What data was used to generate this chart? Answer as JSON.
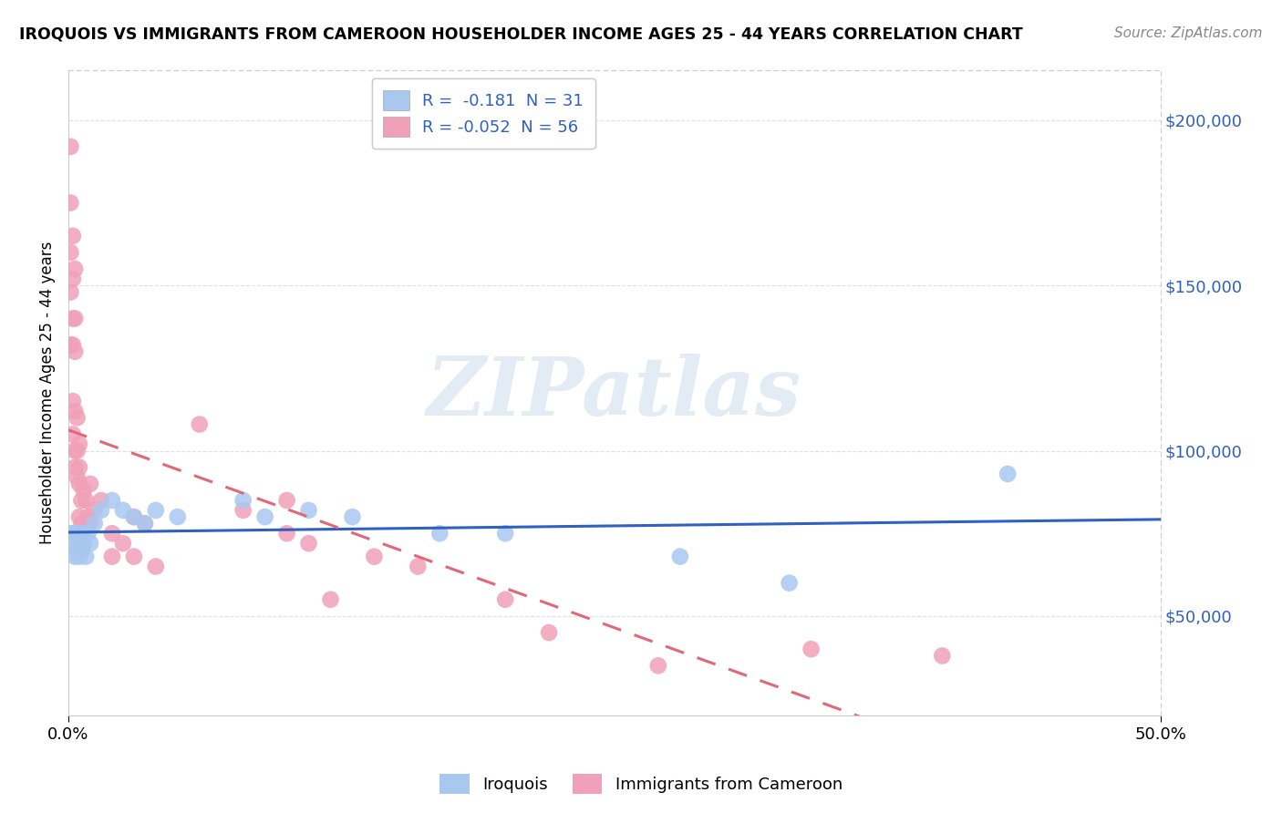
{
  "title": "IROQUOIS VS IMMIGRANTS FROM CAMEROON HOUSEHOLDER INCOME AGES 25 - 44 YEARS CORRELATION CHART",
  "source": "Source: ZipAtlas.com",
  "ylabel": "Householder Income Ages 25 - 44 years",
  "yticks": [
    50000,
    100000,
    150000,
    200000
  ],
  "ytick_labels": [
    "$50,000",
    "$100,000",
    "$150,000",
    "$200,000"
  ],
  "xtick_positions": [
    0.0,
    0.5
  ],
  "xtick_labels": [
    "0.0%",
    "50.0%"
  ],
  "xlim": [
    0.0,
    0.5
  ],
  "ylim": [
    20000,
    215000
  ],
  "legend_r1": "R =  -0.181  N = 31",
  "legend_r2": "R = -0.052  N = 56",
  "color_iroquois": "#a8c8f0",
  "color_cameroon": "#f0a0b8",
  "line_color_iroquois": "#3060c0",
  "line_color_cameroon": "#e06878",
  "watermark_text": "ZIPatlas",
  "bg_color": "#ffffff",
  "grid_color": "#e0e0e0",
  "iroquois_x": [
    0.001,
    0.002,
    0.003,
    0.003,
    0.004,
    0.004,
    0.005,
    0.005,
    0.006,
    0.006,
    0.007,
    0.008,
    0.009,
    0.01,
    0.012,
    0.015,
    0.02,
    0.025,
    0.03,
    0.035,
    0.04,
    0.05,
    0.08,
    0.09,
    0.11,
    0.13,
    0.17,
    0.2,
    0.28,
    0.33,
    0.43
  ],
  "iroquois_y": [
    75000,
    75000,
    72000,
    68000,
    75000,
    70000,
    72000,
    68000,
    75000,
    70000,
    72000,
    68000,
    75000,
    72000,
    78000,
    82000,
    85000,
    82000,
    80000,
    78000,
    82000,
    80000,
    85000,
    80000,
    82000,
    80000,
    75000,
    75000,
    68000,
    60000,
    93000
  ],
  "cameroon_x": [
    0.001,
    0.001,
    0.001,
    0.001,
    0.001,
    0.002,
    0.002,
    0.002,
    0.002,
    0.002,
    0.002,
    0.003,
    0.003,
    0.003,
    0.003,
    0.003,
    0.003,
    0.004,
    0.004,
    0.004,
    0.005,
    0.005,
    0.005,
    0.005,
    0.005,
    0.006,
    0.006,
    0.006,
    0.007,
    0.007,
    0.008,
    0.009,
    0.01,
    0.01,
    0.012,
    0.015,
    0.02,
    0.02,
    0.025,
    0.03,
    0.03,
    0.035,
    0.04,
    0.06,
    0.08,
    0.1,
    0.1,
    0.11,
    0.12,
    0.14,
    0.16,
    0.2,
    0.22,
    0.27,
    0.34,
    0.4
  ],
  "cameroon_y": [
    192000,
    175000,
    160000,
    148000,
    132000,
    165000,
    152000,
    140000,
    132000,
    115000,
    105000,
    155000,
    140000,
    130000,
    112000,
    100000,
    95000,
    110000,
    100000,
    92000,
    102000,
    95000,
    90000,
    80000,
    72000,
    85000,
    78000,
    70000,
    88000,
    75000,
    85000,
    80000,
    90000,
    78000,
    82000,
    85000,
    68000,
    75000,
    72000,
    80000,
    68000,
    78000,
    65000,
    108000,
    82000,
    85000,
    75000,
    72000,
    55000,
    68000,
    65000,
    55000,
    45000,
    35000,
    40000,
    38000
  ]
}
